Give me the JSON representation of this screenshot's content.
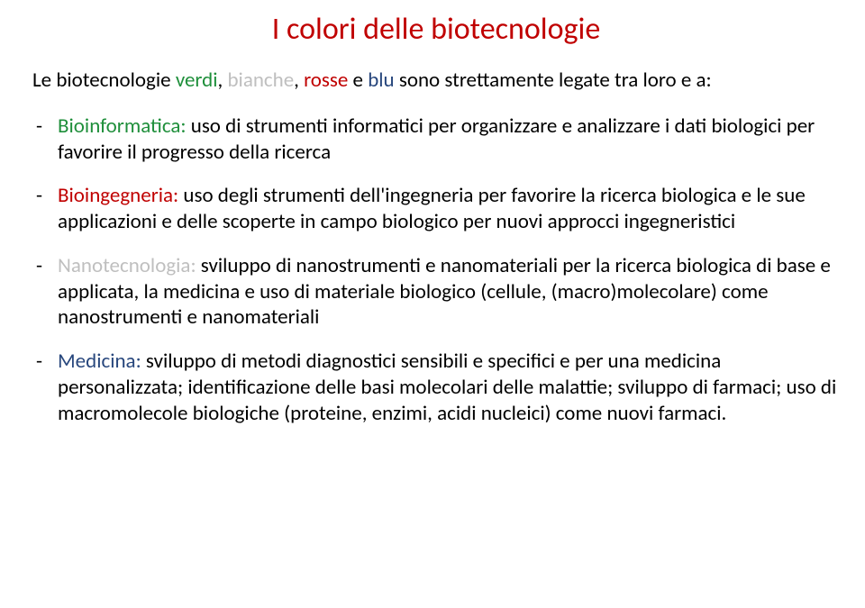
{
  "colors": {
    "title": "#c00000",
    "verdi": "#1f8f3b",
    "bianche": "#bfbfbf",
    "rosse": "#c00000",
    "blu": "#28477d",
    "body": "#000000",
    "bioinfo": "#1f8f3b",
    "bioing": "#c00000",
    "nano": "#bfbfbf",
    "medicina": "#28477d"
  },
  "fonts": {
    "title_size": "34px",
    "body_size": "23px"
  },
  "title": "I colori delle biotecnologie",
  "intro": {
    "pre": "Le biotecnologie ",
    "verdi": "verdi",
    "sep1": ", ",
    "bianche": "bianche",
    "sep2": ", ",
    "rosse": "rosse",
    "sep3": " e ",
    "blu": "blu",
    "post": " sono  strettamente legate tra loro e a:"
  },
  "items": [
    {
      "label": "Bioinformatica:",
      "color_key": "bioinfo",
      "text": " uso di strumenti informatici  per organizzare e analizzare i dati biologici per favorire il progresso della ricerca"
    },
    {
      "label": "Bioingegneria:",
      "color_key": "bioing",
      "text": " uso degli strumenti dell'ingegneria per favorire la ricerca biologica e le sue applicazioni e delle scoperte in campo biologico per nuovi approcci ingegneristici"
    },
    {
      "label": "Nanotecnologia:",
      "color_key": "nano",
      "text": " sviluppo di nanostrumenti e nanomateriali per la ricerca biologica di base e applicata, la medicina  e uso di materiale biologico (cellule, (macro)molecolare) come nanostrumenti e nanomateriali"
    },
    {
      "label": "Medicina:",
      "color_key": "medicina",
      "text": " sviluppo di metodi diagnostici sensibili e specifici e per una medicina personalizzata; identificazione delle basi molecolari delle malattie; sviluppo di farmaci; uso di macromolecole biologiche (proteine, enzimi, acidi nucleici) come nuovi  farmaci."
    }
  ]
}
